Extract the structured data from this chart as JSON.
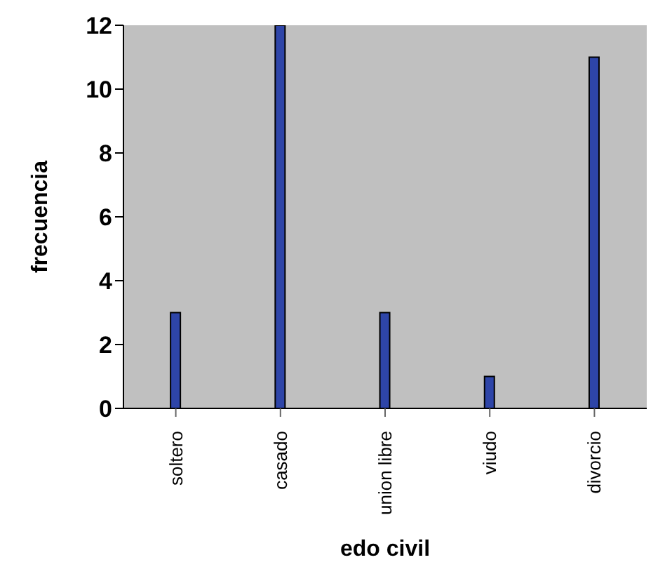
{
  "chart_data": {
    "type": "bar",
    "xlabel": "edo civil",
    "ylabel": "frecuencia",
    "categories": [
      "soltero",
      "casado",
      "union libre",
      "viudo",
      "divorcio"
    ],
    "values": [
      3,
      12,
      3,
      1,
      11
    ],
    "color": "#2e45a8",
    "ylim": [
      0,
      12
    ],
    "yticks": [
      0,
      2,
      4,
      6,
      8,
      10,
      12
    ],
    "grid": false,
    "legend": false
  }
}
